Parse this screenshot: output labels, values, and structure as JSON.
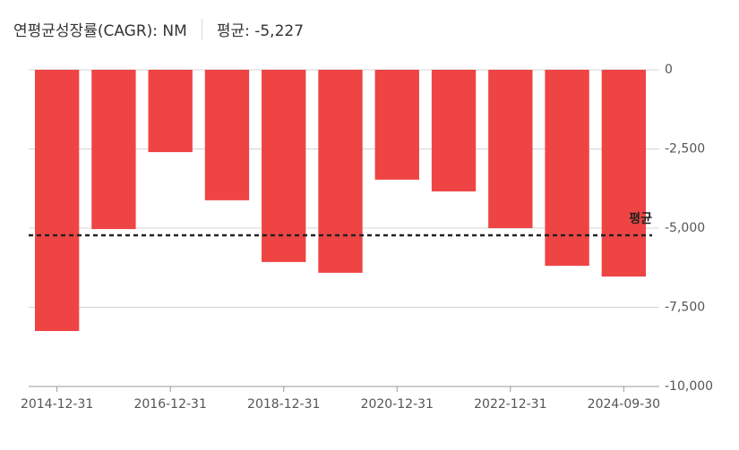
{
  "header": {
    "cagr": "연평균성장률(CAGR): NM",
    "average": "평균: -5,227"
  },
  "chart_data": {
    "type": "bar",
    "categories": [
      "2014-12-31",
      null,
      "2016-12-31",
      null,
      "2018-12-31",
      null,
      "2020-12-31",
      null,
      "2022-12-31",
      null,
      "2024-09-30"
    ],
    "values": [
      -8250,
      -5030,
      -2600,
      -4120,
      -6070,
      -6410,
      -3470,
      -3840,
      -5000,
      -6190,
      -6530
    ],
    "color": "#ef4444",
    "ylim": [
      -10000,
      0
    ],
    "yticks": [
      0,
      {
        "value": -2500,
        "label": "-2,500"
      },
      {
        "value": -5000,
        "label": "-5,000"
      },
      {
        "value": -7500,
        "label": "-7,500"
      },
      {
        "value": -10000,
        "label": "-10,000"
      }
    ],
    "grid": true,
    "average_line": {
      "value": -5227,
      "label": "평균"
    }
  }
}
